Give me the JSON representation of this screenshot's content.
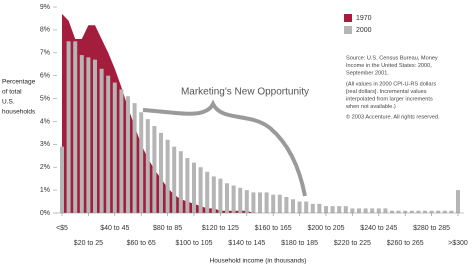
{
  "chart_data": {
    "type": "area-bar",
    "y_label": [
      "Percentage",
      "of total",
      "U.S.",
      "households"
    ],
    "x_label": "Household income (in thousands)",
    "annotation": "Marketing's New Opportunity",
    "source": [
      "Source: U.S. Census Bureau, Money",
      "Income in the United States: 2000,",
      "September 2001.",
      "(All values in 2000 CPI-U-RS dollars",
      "[real dollars]. Incremental values",
      "interpolated from larger increments",
      "when not available.)",
      "© 2003 Accenture. All rights reserved."
    ],
    "legend": "top-right",
    "ylim": [
      0,
      9
    ],
    "yticks": [
      {
        "value": 0,
        "label": "0%"
      },
      {
        "value": 1,
        "label": "1%"
      },
      {
        "value": 2,
        "label": "2%"
      },
      {
        "value": 3,
        "label": "3%"
      },
      {
        "value": 4,
        "label": "4%"
      },
      {
        "value": 5,
        "label": "5%"
      },
      {
        "value": 6,
        "label": "6%"
      },
      {
        "value": 7,
        "label": "7%"
      },
      {
        "value": 8,
        "label": "8%"
      },
      {
        "value": 9,
        "label": "9%"
      }
    ],
    "categories": [
      "<$5",
      null,
      null,
      null,
      "$20 to 25",
      null,
      null,
      null,
      "$40 to 45",
      null,
      null,
      null,
      "$60 to 65",
      null,
      null,
      null,
      "$80 to 85",
      null,
      null,
      null,
      "$100 to 105",
      null,
      null,
      null,
      "$120 to 125",
      null,
      null,
      null,
      "$140 to 145",
      null,
      null,
      null,
      "$160 to 165",
      null,
      null,
      null,
      "$180 to 185",
      null,
      null,
      null,
      "$200 to 205",
      null,
      null,
      null,
      "$220 to 225",
      null,
      null,
      null,
      "$240 to 245",
      null,
      null,
      null,
      "$260 to 265",
      null,
      null,
      null,
      "$280 to 285",
      null,
      null,
      null,
      ">$300"
    ],
    "series": [
      {
        "name": "1970",
        "color": "#a51d3c",
        "kind": "area",
        "values": [
          8.7,
          8.4,
          7.6,
          7.6,
          8.2,
          8.2,
          7.6,
          7.0,
          6.3,
          5.5,
          4.6,
          3.8,
          3.0,
          2.4,
          1.9,
          1.5,
          1.1,
          0.8,
          0.6,
          0.5,
          0.4,
          0.3,
          0.2,
          0.2,
          0.1,
          0.1,
          0.1,
          0.1,
          0.1,
          0,
          0,
          0,
          0,
          0,
          0,
          0,
          0,
          0,
          0,
          0,
          0,
          0,
          0,
          0,
          0,
          0,
          0,
          0,
          0,
          0,
          0,
          0,
          0,
          0,
          0,
          0,
          0,
          0,
          0,
          0,
          0
        ]
      },
      {
        "name": "2000",
        "color": "#b5b5b5",
        "kind": "bar",
        "values": [
          2.9,
          7.5,
          7.5,
          6.9,
          6.8,
          6.7,
          6.3,
          6.0,
          5.7,
          5.4,
          5.1,
          4.8,
          4.4,
          4.1,
          3.8,
          3.5,
          3.2,
          2.9,
          2.7,
          2.4,
          2.2,
          2.0,
          1.8,
          1.6,
          1.5,
          1.3,
          1.2,
          1.1,
          1.0,
          0.9,
          0.9,
          0.9,
          0.8,
          0.8,
          0.7,
          0.6,
          0.5,
          0.5,
          0.4,
          0.4,
          0.3,
          0.3,
          0.3,
          0.3,
          0.2,
          0.2,
          0.2,
          0.2,
          0.2,
          0.2,
          0.1,
          0.1,
          0.1,
          0.1,
          0.1,
          0.1,
          0.1,
          0.1,
          0.1,
          0.1,
          1.0
        ]
      }
    ]
  }
}
